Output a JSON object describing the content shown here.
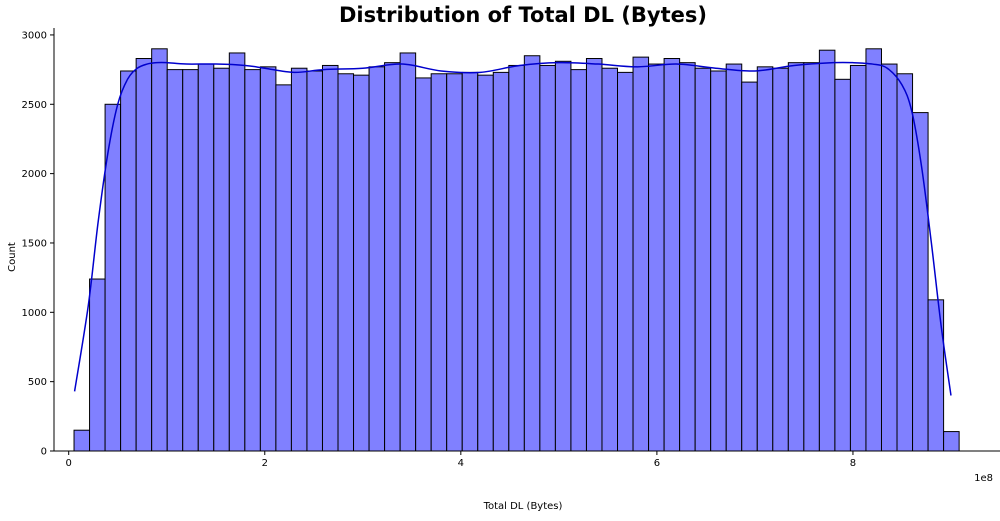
{
  "chart_data": {
    "type": "bar",
    "subtype": "histogram",
    "title": "Distribution of Total DL (Bytes)",
    "xlabel": "Total DL (Bytes)",
    "ylabel": "Count",
    "x_offset_text": "1e8",
    "xlim": [
      -0.15,
      9.5
    ],
    "ylim": [
      0,
      3050
    ],
    "x_ticks": [
      0,
      2,
      4,
      6,
      8
    ],
    "x_tick_labels": [
      "0",
      "2",
      "4",
      "6",
      "8"
    ],
    "y_ticks": [
      0,
      500,
      1000,
      1500,
      2000,
      2500,
      3000
    ],
    "y_tick_labels": [
      "0",
      "500",
      "1000",
      "1500",
      "2000",
      "2500",
      "3000"
    ],
    "bin_start": 0.0543,
    "bin_width": 0.1584,
    "counts": [
      150,
      1240,
      2500,
      2740,
      2830,
      2900,
      2750,
      2750,
      2790,
      2760,
      2870,
      2750,
      2770,
      2640,
      2760,
      2740,
      2780,
      2720,
      2710,
      2770,
      2800,
      2870,
      2690,
      2720,
      2720,
      2730,
      2710,
      2730,
      2780,
      2850,
      2780,
      2810,
      2750,
      2830,
      2760,
      2730,
      2840,
      2790,
      2830,
      2800,
      2760,
      2740,
      2790,
      2660,
      2770,
      2760,
      2800,
      2800,
      2890,
      2680,
      2780,
      2900,
      2790,
      2720,
      2440,
      1090,
      140
    ],
    "kde": {
      "x": [
        0.06,
        0.2,
        0.3,
        0.4,
        0.5,
        0.6,
        0.7,
        0.8,
        0.9,
        1.0,
        1.2,
        1.5,
        1.8,
        2.0,
        2.3,
        2.6,
        3.0,
        3.4,
        3.8,
        4.2,
        4.6,
        5.0,
        5.4,
        5.8,
        6.2,
        6.6,
        7.0,
        7.4,
        7.8,
        8.0,
        8.2,
        8.35,
        8.5,
        8.6,
        8.7,
        8.8,
        8.9,
        9.0
      ],
      "y": [
        430,
        1050,
        1650,
        2150,
        2500,
        2680,
        2760,
        2790,
        2800,
        2800,
        2790,
        2790,
        2780,
        2760,
        2730,
        2750,
        2760,
        2790,
        2740,
        2730,
        2780,
        2800,
        2790,
        2770,
        2790,
        2760,
        2740,
        2780,
        2800,
        2800,
        2790,
        2760,
        2640,
        2450,
        2050,
        1500,
        900,
        400
      ]
    },
    "colors": {
      "bar_fill": "#8080ff",
      "bar_edge": "#000000",
      "kde_line": "#0000cc"
    },
    "grid": false,
    "legend": false
  }
}
